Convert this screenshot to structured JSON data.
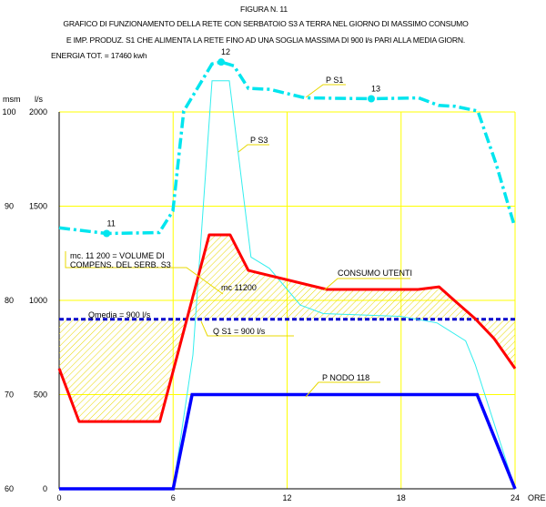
{
  "header": {
    "figure": "FIGURA N. 11",
    "line1": "GRAFICO DI FUNZIONAMENTO DELLA RETE CON SERBATOIO S3 A TERRA NEL GIORNO DI MASSIMO CONSUMO",
    "line2": "E IMP. PRODUZ. S1 CHE ALIMENTA LA RETE FINO AD UNA SOGLIA MASSIMA DI 900 l/s PARI ALLA MEDIA GIORN.",
    "energy": "ENERGIA TOT. = 17460 kwh"
  },
  "chart_data": {
    "type": "line",
    "xlabel": "ORE",
    "ylabel_left": "msm",
    "ylabel_right": "l/s",
    "xlim": [
      0,
      24
    ],
    "ylim_flow": [
      0,
      2000
    ],
    "ylim_pressure": [
      60,
      100
    ],
    "x_ticks": [
      "0",
      "6",
      "12",
      "18",
      "24"
    ],
    "y_ticks_pressure": [
      "60",
      "70",
      "80",
      "90",
      "100"
    ],
    "y_ticks_flow": [
      "0",
      "500",
      "1000",
      "1500",
      "2000"
    ],
    "grid": true,
    "colors": {
      "grid": "#ffff00",
      "consumo": "#ff0000",
      "ps1": "#00e5ee",
      "ps3": "#33eeee",
      "nodo": "#0000ff",
      "qmedia": "#0000cc",
      "hatch": "#e8d800"
    },
    "series": [
      {
        "name": "P S1",
        "unit": "msm",
        "style": "dash-dot",
        "x": [
          0,
          2.5,
          5.27,
          5.99,
          6.56,
          8.05,
          8.53,
          9.2,
          9.96,
          11.1,
          12.93,
          16.43,
          18.92,
          19.98,
          20.84,
          22.04,
          23.0,
          23.95
        ],
        "y": [
          87.7,
          87.1,
          87.2,
          89.5,
          100.1,
          105.1,
          105.3,
          104.9,
          102.5,
          102.4,
          101.5,
          101.4,
          101.5,
          100.7,
          100.6,
          100.1,
          94.5,
          88.0
        ]
      },
      {
        "name": "P S3",
        "unit": "msm",
        "style": "thin",
        "x": [
          0,
          6,
          7.04,
          8.05,
          8.96,
          10.1,
          11.07,
          12.7,
          13.9,
          18,
          19.9,
          21.4,
          21.9,
          24
        ],
        "y": [
          60,
          60,
          74.2,
          103.3,
          103.3,
          84.6,
          83.4,
          79.5,
          78.6,
          78.3,
          77.6,
          75.7,
          73.2,
          60
        ]
      },
      {
        "name": "CONSUMO UTENTI",
        "unit": "l/s",
        "style": "thick",
        "x": [
          0,
          1.05,
          5.3,
          7.9,
          9.0,
          9.96,
          14.1,
          18.9,
          20,
          20.8,
          21.9,
          22.9,
          24
        ],
        "y": [
          638,
          357,
          357,
          1348,
          1348,
          1159,
          1058,
          1058,
          1072,
          1000,
          903,
          797,
          638
        ]
      },
      {
        "name": "P NODO 118",
        "unit": "l/s",
        "style": "thick",
        "x": [
          0,
          6,
          7,
          22,
          24
        ],
        "y": [
          0,
          0,
          500,
          500,
          0
        ]
      },
      {
        "name": "Qmedia = 900 l/s",
        "unit": "l/s",
        "style": "dashed",
        "x": [
          0,
          24
        ],
        "y": [
          900,
          900
        ]
      }
    ],
    "markers": [
      {
        "series": "P S1",
        "x": 2.5,
        "label": "11"
      },
      {
        "series": "P S1",
        "x": 8.53,
        "label": "12"
      },
      {
        "series": "P S1",
        "x": 16.43,
        "label": "13"
      }
    ],
    "annotations": {
      "volume1": "mc. 11 200 = VOLUME DI",
      "volume2": "COMPENS. DEL SERB. S3",
      "mc": "mc 11200",
      "consumo": "CONSUMO UTENTI",
      "qmedia": "Qmedia = 900 l/s",
      "qs1": "Q S1 = 900 l/s",
      "nodo": "P NODO 118",
      "ps1": "P S1",
      "ps3": "P S3"
    }
  }
}
